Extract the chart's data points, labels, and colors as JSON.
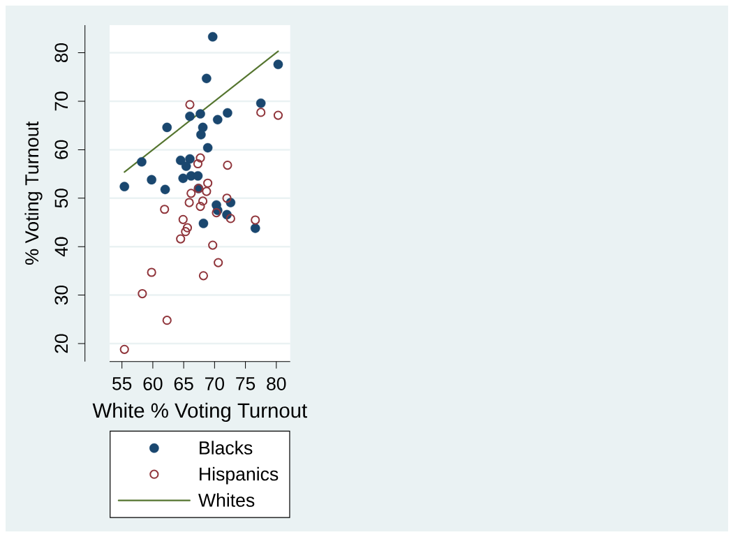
{
  "chart_data": {
    "type": "scatter",
    "xlabel": "White % Voting Turnout",
    "ylabel": "% Voting Turnout",
    "xlim": [
      53,
      82.25
    ],
    "ylim": [
      16.3,
      85.7
    ],
    "xticks": [
      55,
      60,
      65,
      70,
      75,
      80
    ],
    "yticks": [
      20,
      30,
      40,
      50,
      60,
      70,
      80
    ],
    "grid": "y",
    "legend": "bottom",
    "marker": "circle",
    "series": [
      {
        "name": "Blacks",
        "color": "#1a476f",
        "x": [
          69.7,
          68.7,
          80.3,
          77.5,
          66.0,
          67.7,
          70.5,
          72.1,
          62.3,
          68.1,
          67.8,
          68.9,
          58.2,
          64.5,
          66.0,
          65.4,
          59.8,
          64.9,
          66.2,
          67.3,
          55.4,
          62.0,
          67.4,
          70.3,
          70.5,
          72.6,
          72.0,
          68.2,
          76.6
        ],
        "values": [
          83.3,
          74.7,
          77.6,
          69.6,
          66.9,
          67.4,
          66.2,
          67.6,
          64.6,
          64.6,
          63.1,
          60.4,
          57.5,
          57.8,
          58.1,
          56.6,
          53.8,
          54.1,
          54.6,
          54.6,
          52.4,
          51.8,
          52.0,
          48.6,
          47.5,
          49.1,
          46.6,
          44.8,
          43.8
        ]
      },
      {
        "name": "Hispanics",
        "color": "#90353b",
        "marker": "circle-open",
        "x": [
          66.0,
          77.5,
          80.3,
          67.7,
          67.3,
          72.1,
          68.9,
          67.4,
          66.2,
          68.7,
          65.9,
          68.1,
          67.7,
          72.0,
          70.3,
          72.6,
          76.6,
          61.9,
          64.9,
          65.6,
          65.3,
          64.5,
          69.7,
          70.6,
          59.8,
          68.2,
          58.3,
          62.3,
          55.4
        ],
        "values": [
          69.3,
          67.7,
          67.1,
          58.3,
          57.1,
          56.8,
          53.1,
          52.0,
          51.0,
          51.4,
          49.1,
          49.4,
          48.3,
          50.0,
          47.0,
          45.8,
          45.5,
          47.7,
          45.6,
          43.9,
          43.1,
          41.6,
          40.3,
          36.7,
          34.7,
          34.0,
          30.3,
          24.8,
          18.8
        ]
      },
      {
        "name": "Whites",
        "type": "line",
        "color": "#55752f",
        "marker": "none",
        "x": [
          55.4,
          80.3
        ],
        "values": [
          55.4,
          80.3
        ]
      }
    ]
  }
}
